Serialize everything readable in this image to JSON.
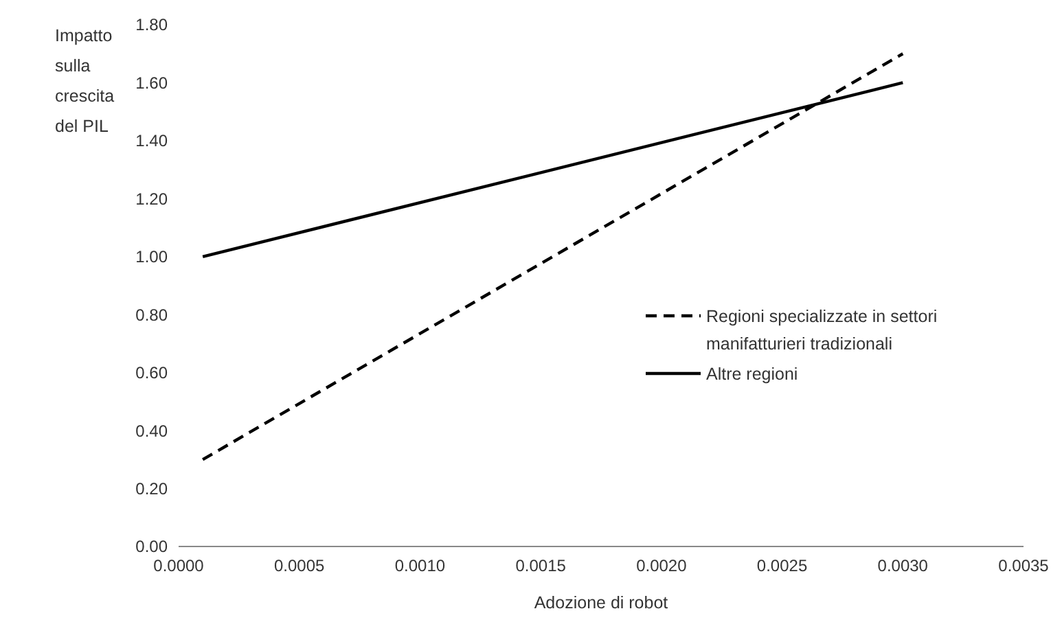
{
  "chart_data": {
    "type": "line",
    "xlabel": "Adozione di robot",
    "ylabel": "Impatto sulla crescita del PIL",
    "xlim": [
      0,
      0.0035
    ],
    "xticks": [
      {
        "value": 0,
        "label": "0.0000"
      },
      {
        "value": 0.0005,
        "label": "0.0005"
      },
      {
        "value": 0.001,
        "label": "0.0010"
      },
      {
        "value": 0.0015,
        "label": "0.0015"
      },
      {
        "value": 0.002,
        "label": "0.0020"
      },
      {
        "value": 0.0025,
        "label": "0.0025"
      },
      {
        "value": 0.003,
        "label": "0.0030"
      },
      {
        "value": 0.0035,
        "label": "0.0035"
      }
    ],
    "ylim": [
      0,
      1.8
    ],
    "yticks": [
      {
        "value": 0,
        "label": "0.00"
      },
      {
        "value": 0.2,
        "label": "0.20"
      },
      {
        "value": 0.4,
        "label": "0.40"
      },
      {
        "value": 0.6,
        "label": "0.60"
      },
      {
        "value": 0.8,
        "label": "0.80"
      },
      {
        "value": 1,
        "label": "1.00"
      },
      {
        "value": 1.2,
        "label": "1.20"
      },
      {
        "value": 1.4,
        "label": "1.40"
      },
      {
        "value": 1.6,
        "label": "1.60"
      },
      {
        "value": 1.8,
        "label": "1.80"
      }
    ],
    "x": [
      0.0001,
      0.003
    ],
    "grid": false,
    "legend": "right",
    "series": [
      {
        "name": "Regioni specializzate in settori manifatturieri tradizionali",
        "color": "#000000",
        "line_style": "dashed",
        "values": [
          0.3,
          1.7
        ]
      },
      {
        "name": "Altre regioni",
        "color": "#000000",
        "line_style": "solid",
        "values": [
          1.0,
          1.6
        ]
      }
    ]
  }
}
